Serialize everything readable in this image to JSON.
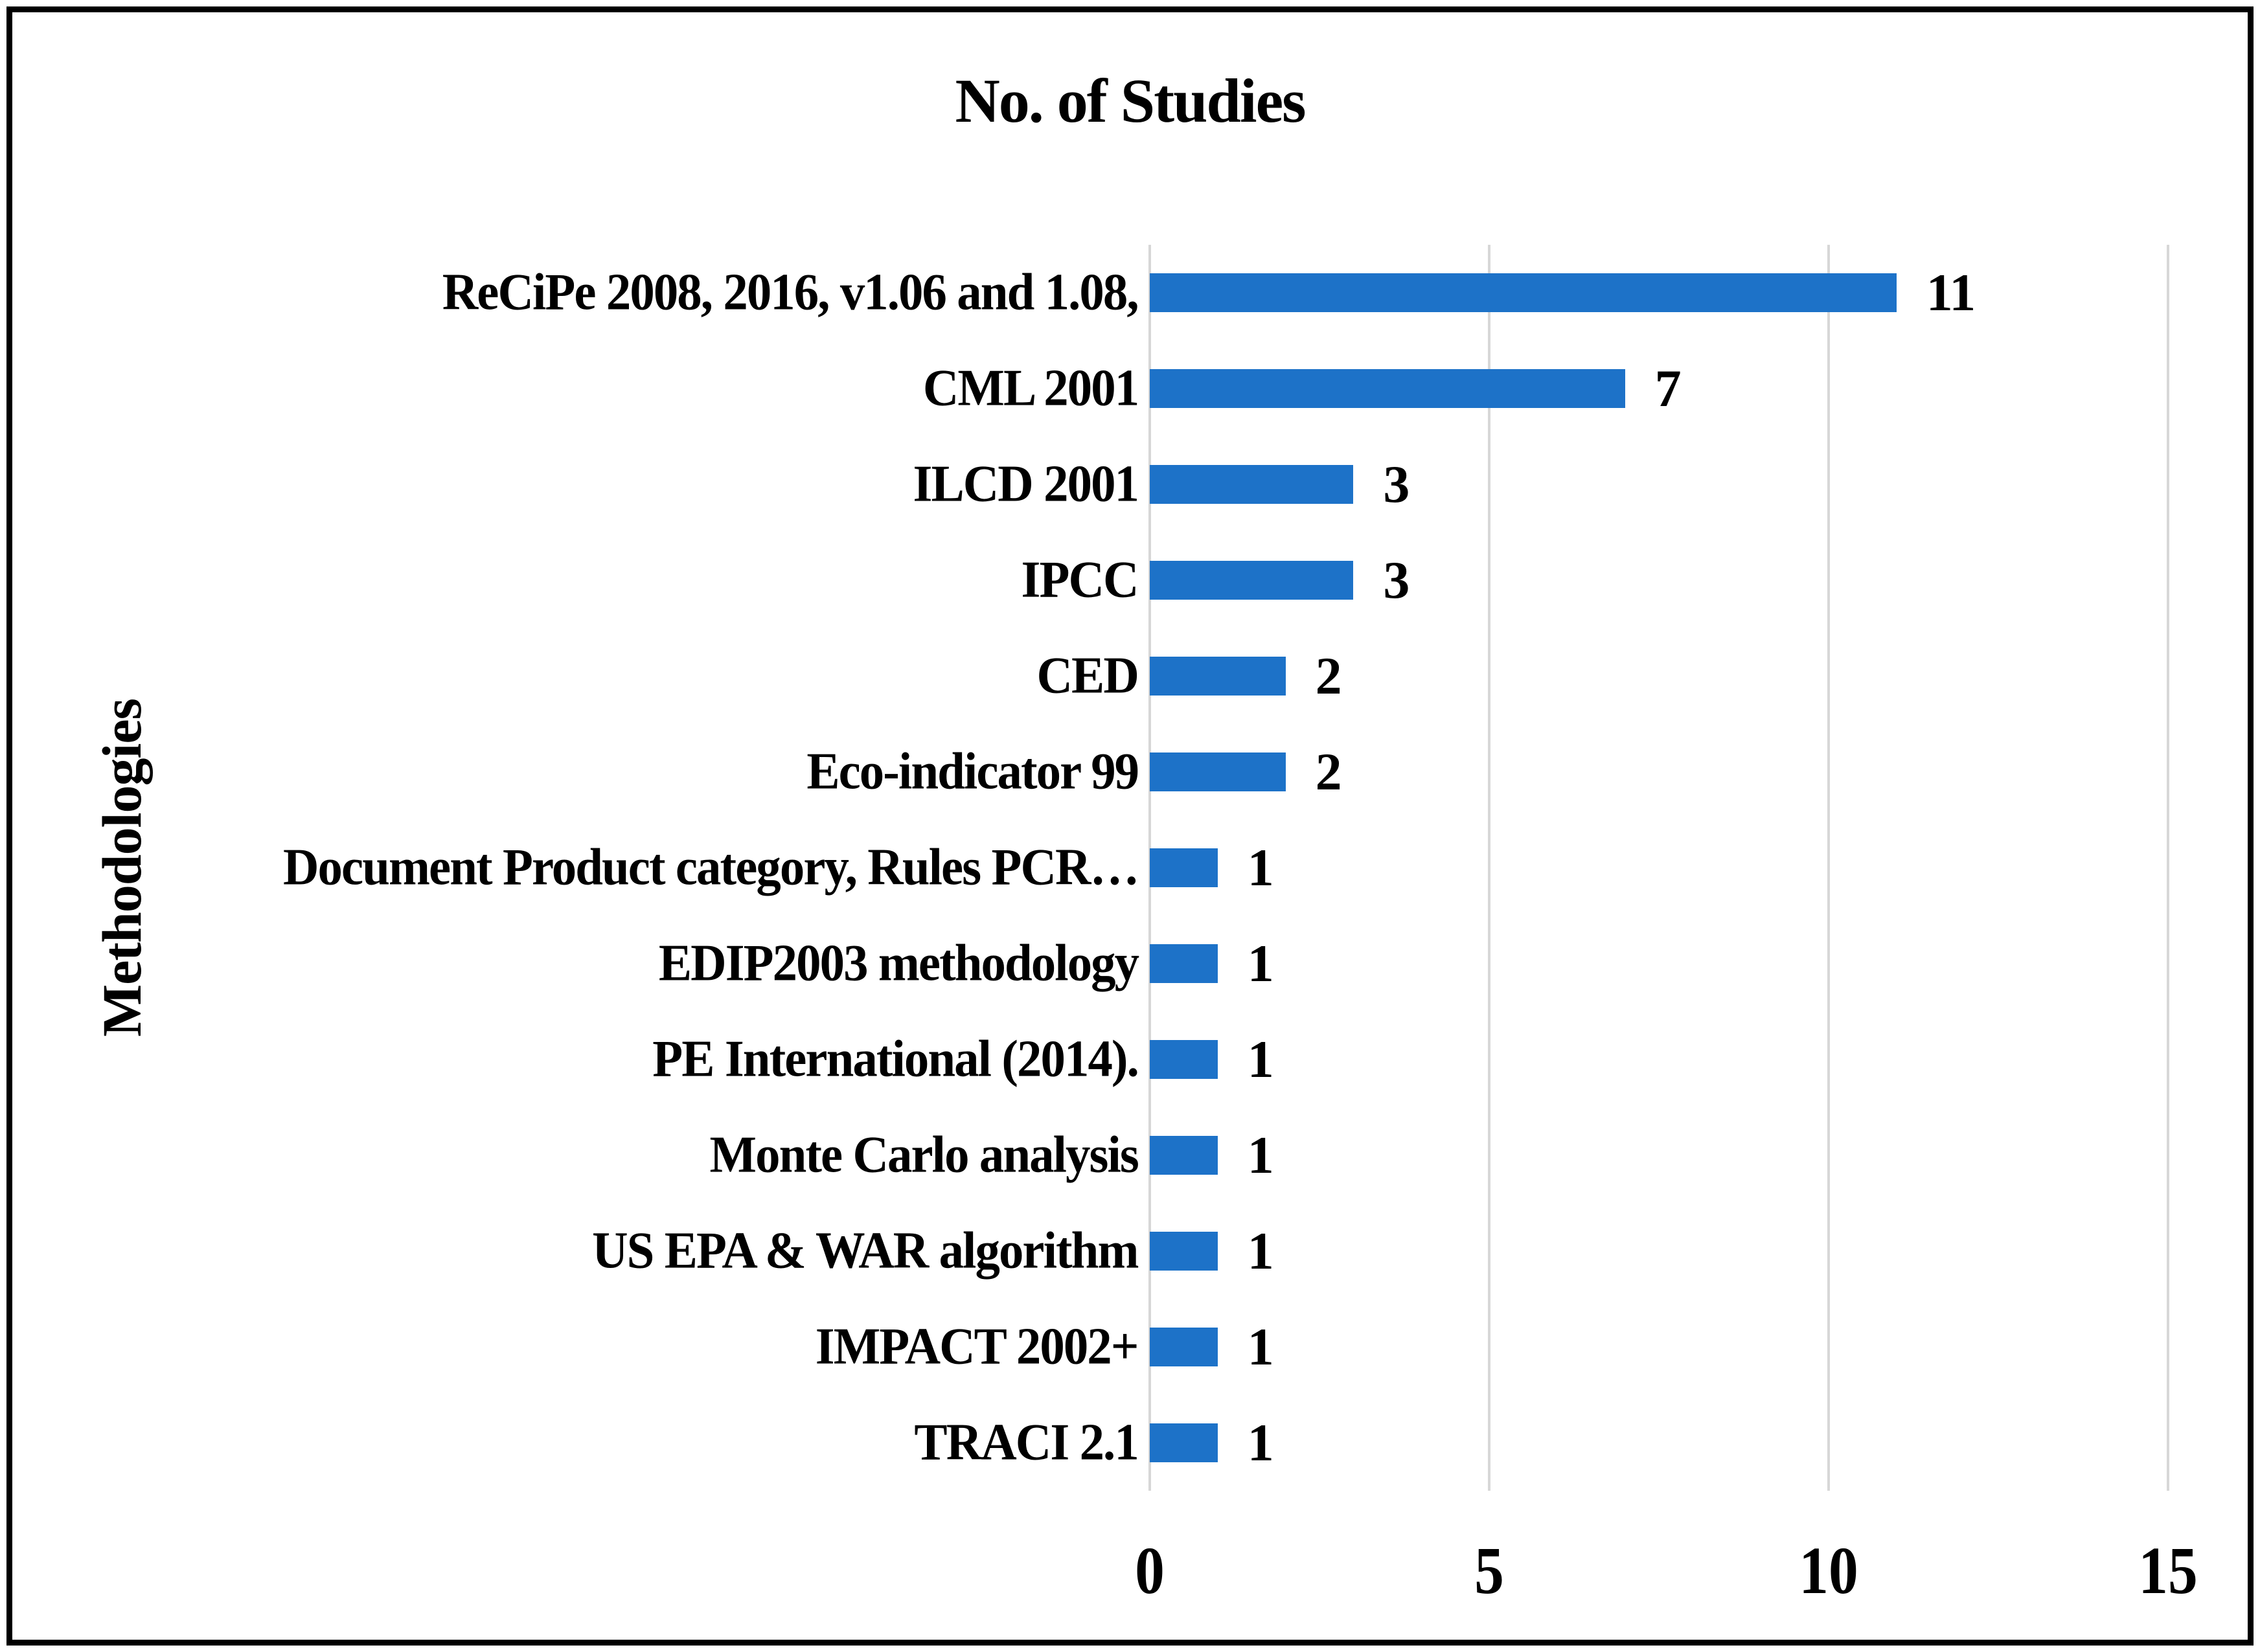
{
  "chart_data": {
    "type": "bar",
    "orientation": "horizontal",
    "title": "No. of Studies",
    "xlabel": "",
    "ylabel": "Methodologies",
    "categories": [
      "ReCiPe 2008, 2016, v1.06 and 1.08,",
      "CML 2001",
      "ILCD 2001",
      "IPCC",
      "CED",
      "Eco-indicator 99",
      "Document Product category, Rules PCR…",
      "EDIP2003 methodology",
      "PE International (2014).",
      "Monte Carlo analysis",
      "US EPA & WAR algorithm",
      "IMPACT 2002+",
      "TRACI 2.1"
    ],
    "values": [
      11,
      7,
      3,
      3,
      2,
      2,
      1,
      1,
      1,
      1,
      1,
      1,
      1
    ],
    "data_labels": [
      "11",
      "7",
      "3",
      "3",
      "2",
      "2",
      "1",
      "1",
      "1",
      "1",
      "1",
      "1",
      "1"
    ],
    "xlim": [
      0,
      15
    ],
    "xticks": [
      "0",
      "5",
      "10",
      "15"
    ],
    "grid": true,
    "legend": "none",
    "colors": {
      "bar": "#1D72C8",
      "gridline": "#D7D7D7",
      "text": "#000000",
      "frame_border": "#000000",
      "background": "#FFFFFF"
    }
  }
}
